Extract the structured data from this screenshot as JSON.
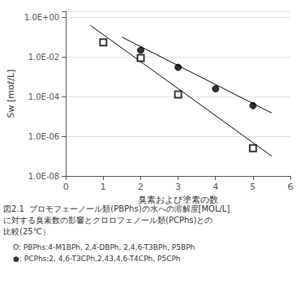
{
  "chart_data": {
    "type": "scatter",
    "xlabel": "臭素および塗素の数",
    "ylabel": "Sw [moℓ/L]",
    "xlim": [
      0,
      6
    ],
    "xticks": [
      0,
      1,
      2,
      3,
      4,
      5,
      6
    ],
    "ylim": [
      1e-08,
      2
    ],
    "yticks": [
      {
        "value": 1e-08,
        "label": "1.0E-08"
      },
      {
        "value": 1e-06,
        "label": "1.0E-06"
      },
      {
        "value": 0.0001,
        "label": "1.0E-04"
      },
      {
        "value": 0.01,
        "label": "1.0E-02"
      },
      {
        "value": 1,
        "label": "1.0E+00"
      }
    ],
    "log": "y",
    "grid": "y",
    "annotations": [
      "図2.1  ブロモフェーノール類(PBPhs)の水への溶解度[MOL/L]",
      "に対する臭素数の影響とクロロフェノール類(PCPhs)との",
      "比較(25℃）",
      "O: PBPhs:4-M1BPh, 2,4-DBPh, 2,4,6-T3BPh, P5BPh",
      "●: PCPhs:2, 4,6-T3CPh,2,43,4,6-T4CPh, P5CPh"
    ],
    "series": [
      {
        "type": "line",
        "color": "black",
        "line_style": "solid",
        "x": [
          0.65,
          5.5
        ],
        "values": [
          0.4,
          1e-07
        ]
      },
      {
        "type": "line",
        "color": "black",
        "line_style": "solid",
        "x": [
          1.5,
          5.5
        ],
        "values": [
          0.1,
          1.5e-05
        ]
      },
      {
        "type": "scatter",
        "color": "black",
        "marker": "open_square",
        "x": [
          1,
          2,
          3,
          5
        ],
        "values": [
          0.055,
          0.009,
          0.00013,
          2.5e-07
        ]
      },
      {
        "type": "scatter",
        "color": "black",
        "marker": "circle",
        "x": [
          2,
          3,
          4,
          5
        ],
        "values": [
          0.022,
          0.003,
          0.00025,
          3.5e-05
        ]
      }
    ]
  }
}
